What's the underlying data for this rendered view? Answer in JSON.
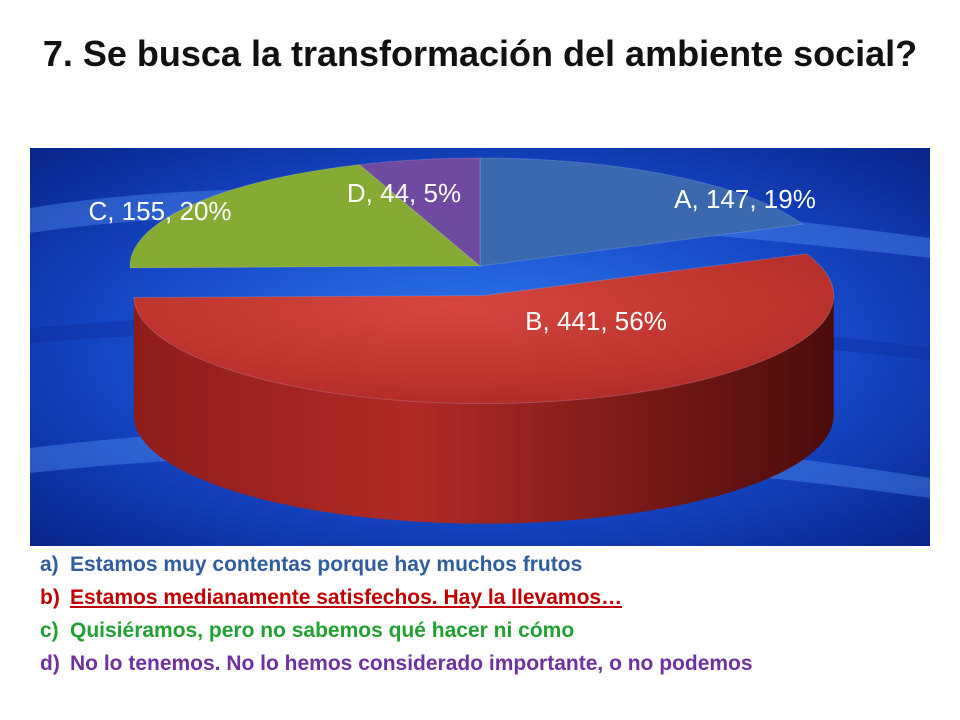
{
  "title": "7. Se busca la transformación del ambiente social?",
  "chart_data": {
    "type": "pie",
    "categories": [
      "A",
      "B",
      "C",
      "D"
    ],
    "values": [
      147,
      441,
      155,
      44
    ],
    "percents": [
      19,
      56,
      20,
      5
    ],
    "data_labels": [
      "A, 147, 19%",
      "B, 441, 56%",
      "C, 155, 20%",
      "D, 44, 5%"
    ],
    "colors": [
      "#3b69b0",
      "#c0332e",
      "#86ab35",
      "#6f4aa0"
    ],
    "style": "3d-exploded-pie"
  },
  "legend": [
    {
      "marker": "a)",
      "text": "Estamos muy contentas porque hay muchos frutos",
      "color": "#2f5d9e"
    },
    {
      "marker": "b)",
      "text": "Estamos medianamente satisfechos. Hay la llevamos…",
      "color": "#c00000",
      "underline": true
    },
    {
      "marker": "c)",
      "text": "Quisiéramos, pero no sabemos qué hacer ni cómo",
      "color": "#22a032"
    },
    {
      "marker": "d)",
      "text": "No lo tenemos. No lo hemos considerado importante, o no podemos",
      "color": "#7030a0"
    }
  ]
}
